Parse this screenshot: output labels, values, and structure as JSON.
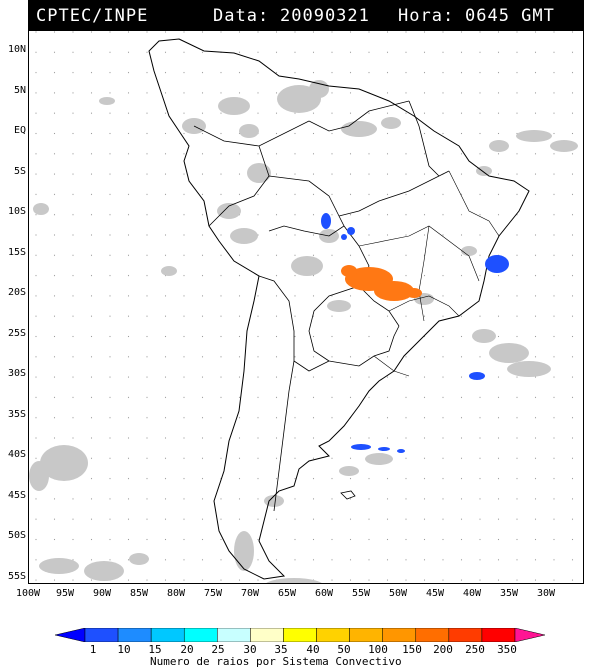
{
  "header": {
    "left": "CPTEC/INPE",
    "date_label": "Data:",
    "date_value": "20090321",
    "hour_label": "Hora:",
    "hour_value": "0645 GMT"
  },
  "axes": {
    "lat_labels": [
      "10N",
      "5N",
      "EQ",
      "5S",
      "10S",
      "15S",
      "20S",
      "25S",
      "30S",
      "35S",
      "40S",
      "45S",
      "50S",
      "55S"
    ],
    "lon_labels": [
      "100W",
      "95W",
      "90W",
      "85W",
      "80W",
      "75W",
      "70W",
      "65W",
      "60W",
      "55W",
      "50W",
      "45W",
      "40W",
      "35W",
      "30W"
    ]
  },
  "colorbar": {
    "title": "Numero de raios por Sistema Convectivo",
    "ticks": [
      "1",
      "10",
      "15",
      "20",
      "25",
      "30",
      "35",
      "40",
      "50",
      "100",
      "150",
      "200",
      "250",
      "350"
    ],
    "colors": [
      "#0000ff",
      "#1e50ff",
      "#1e8cff",
      "#00c8ff",
      "#00ffff",
      "#c8ffff",
      "#ffffc8",
      "#ffff00",
      "#ffd200",
      "#ffb400",
      "#ff9600",
      "#ff6e00",
      "#ff3c00",
      "#ff0000",
      "#ff1493"
    ]
  },
  "map": {
    "extent": {
      "lon": [
        -100,
        -25
      ],
      "lat": [
        -56,
        12
      ]
    },
    "features": [
      "coastline",
      "country-borders",
      "state-borders",
      "cloud-cover",
      "lightning-clusters"
    ],
    "lightning": [
      {
        "name": "lightning-cluster-central-brazil",
        "color": "#ff7814",
        "lon": -53,
        "lat": -18
      },
      {
        "name": "lightning-cluster-mato-grosso",
        "color": "#1e50ff",
        "lon": -60,
        "lat": -11.5
      },
      {
        "name": "lightning-cluster-atlantic-bahia",
        "color": "#1e50ff",
        "lon": -38,
        "lat": -16
      },
      {
        "name": "lightning-cluster-south-atlantic",
        "color": "#1e50ff",
        "lon": -41,
        "lat": -30
      },
      {
        "name": "lightning-cluster-patagonia-sea",
        "color": "#1e50ff",
        "lon": -56,
        "lat": -39.5
      }
    ]
  }
}
